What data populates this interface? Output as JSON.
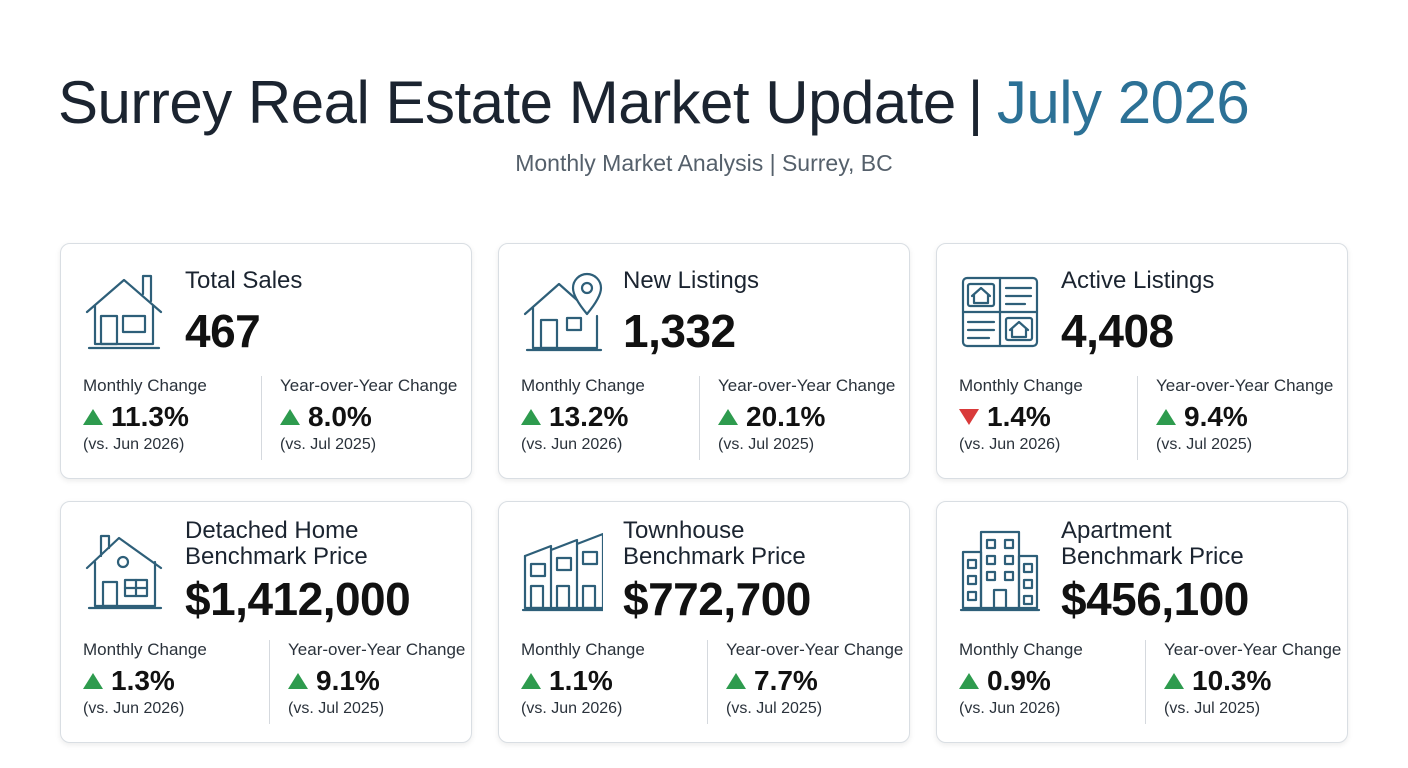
{
  "header": {
    "title": "Surrey Real Estate Market Update",
    "separator": "|",
    "title_accent": "July 2026",
    "subtitle": "Monthly Market Analysis | Surrey, BC"
  },
  "colors": {
    "accent": "#2c7196",
    "up": "#2e9b4e",
    "down": "#d93a3a",
    "icon": "#2e5f79"
  },
  "cards": [
    {
      "label": "Total Sales",
      "value": "467",
      "icon": "house-icon",
      "monthly": {
        "label": "Monthly Change",
        "direction": "up",
        "value": "11.3%",
        "note": "(vs. Jun 2026)"
      },
      "yoy": {
        "label": "Year-over-Year Change",
        "direction": "up",
        "value": "8.0%",
        "note": "(vs. Jul 2025)"
      }
    },
    {
      "label": "New Listings",
      "value": "1,332",
      "icon": "house-location-pin-icon",
      "monthly": {
        "label": "Monthly Change",
        "direction": "up",
        "value": "13.2%",
        "note": "(vs. Jun 2026)"
      },
      "yoy": {
        "label": "Year-over-Year Change",
        "direction": "up",
        "value": "20.1%",
        "note": "(vs. Jul 2025)"
      }
    },
    {
      "label": "Active Listings",
      "value": "4,408",
      "icon": "listings-board-icon",
      "monthly": {
        "label": "Monthly Change",
        "direction": "down",
        "value": "1.4%",
        "note": "(vs. Jun 2026)"
      },
      "yoy": {
        "label": "Year-over-Year Change",
        "direction": "up",
        "value": "9.4%",
        "note": "(vs. Jul 2025)"
      }
    },
    {
      "label_line1": "Detached Home",
      "label_line2": "Benchmark Price",
      "value": "$1,412,000",
      "icon": "detached-house-icon",
      "monthly": {
        "label": "Monthly Change",
        "direction": "up",
        "value": "1.3%",
        "note": "(vs. Jun 2026)"
      },
      "yoy": {
        "label": "Year-over-Year Change",
        "direction": "up",
        "value": "9.1%",
        "note": "(vs. Jul 2025)"
      }
    },
    {
      "label_line1": "Townhouse",
      "label_line2": "Benchmark Price",
      "value": "$772,700",
      "icon": "townhouse-icon",
      "monthly": {
        "label": "Monthly Change",
        "direction": "up",
        "value": "1.1%",
        "note": "(vs. Jun 2026)"
      },
      "yoy": {
        "label": "Year-over-Year Change",
        "direction": "up",
        "value": "7.7%",
        "note": "(vs. Jul 2025)"
      }
    },
    {
      "label_line1": "Apartment",
      "label_line2": "Benchmark Price",
      "value": "$456,100",
      "icon": "apartment-building-icon",
      "monthly": {
        "label": "Monthly Change",
        "direction": "up",
        "value": "0.9%",
        "note": "(vs. Jun 2026)"
      },
      "yoy": {
        "label": "Year-over-Year Change",
        "direction": "up",
        "value": "10.3%",
        "note": "(vs. Jul 2025)"
      }
    }
  ]
}
